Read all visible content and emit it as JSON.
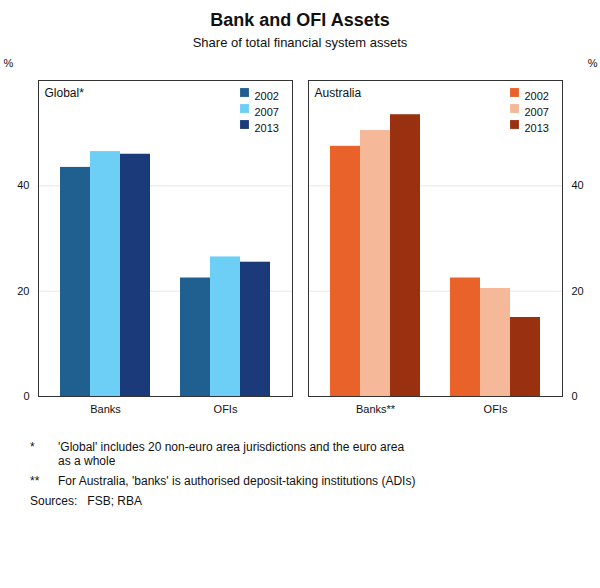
{
  "title": "Bank and OFI Assets",
  "subtitle": "Share of total financial system assets",
  "annotations": [
    [
      "*",
      "'Global' includes 20 non-euro area jurisdictions and the euro area\nas a whole"
    ],
    [
      "**",
      "For Australia, 'banks' is authorised deposit-taking institutions (ADIs)"
    ],
    [
      "Sources:   FSB; RBA"
    ]
  ],
  "chart_data": [
    {
      "type": "bar",
      "title": "Global*",
      "categories": [
        "Banks",
        "OFIs"
      ],
      "series": [
        {
          "name": "2002",
          "color": "#1f6090",
          "values": [
            43.5,
            22.5
          ]
        },
        {
          "name": "2007",
          "color": "#6dcff6",
          "values": [
            46.5,
            26.5
          ]
        },
        {
          "name": "2013",
          "color": "#1a3a7a",
          "values": [
            46.0,
            25.5
          ]
        }
      ],
      "ylabel": "%",
      "ylim": [
        0,
        60
      ],
      "yticks": [
        0,
        20,
        40
      ],
      "grid": true,
      "legend": "upper right"
    },
    {
      "type": "bar",
      "title": "Australia",
      "categories": [
        "Banks**",
        "OFIs"
      ],
      "series": [
        {
          "name": "2002",
          "color": "#e8622a",
          "values": [
            47.5,
            22.5
          ]
        },
        {
          "name": "2007",
          "color": "#f5b899",
          "values": [
            50.5,
            20.5
          ]
        },
        {
          "name": "2013",
          "color": "#993010",
          "values": [
            53.5,
            15.0
          ]
        }
      ],
      "ylabel": "%",
      "ylim": [
        0,
        60
      ],
      "yticks": [
        0,
        20,
        40
      ],
      "grid": true,
      "legend": "upper right"
    }
  ]
}
